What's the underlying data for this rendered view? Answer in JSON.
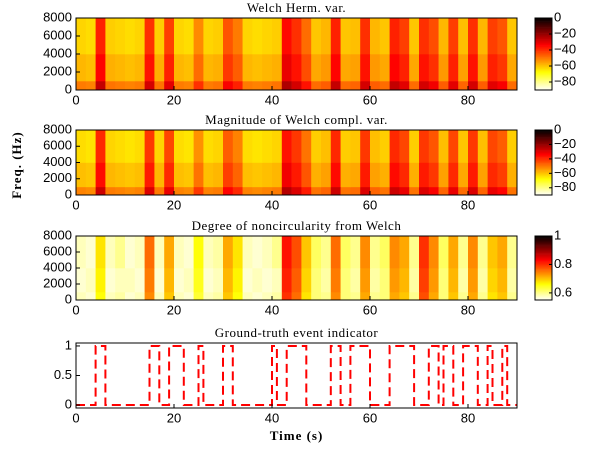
{
  "chart_data": [
    {
      "type": "heatmap",
      "title": "Welch Herm. var.",
      "colormap": "hot_r",
      "xbins": [
        0,
        2,
        4,
        6,
        8,
        10,
        12,
        14,
        16,
        18,
        20,
        22,
        24,
        26,
        28,
        30,
        32,
        34,
        36,
        38,
        40,
        42,
        44,
        46,
        48,
        50,
        52,
        54,
        56,
        58,
        60,
        62,
        64,
        66,
        68,
        70,
        72,
        74,
        76,
        78,
        80,
        82,
        84,
        86,
        88,
        90
      ],
      "ybins": [
        0,
        1000,
        4000,
        8000
      ],
      "z": [
        [
          -50,
          -51,
          -26,
          -49,
          -50,
          -51,
          -50,
          -28,
          -49,
          -30,
          -50,
          -51,
          -40,
          -50,
          -49,
          -33,
          -38,
          -50,
          -51,
          -50,
          -49,
          -23,
          -28,
          -36,
          -48,
          -46,
          -26,
          -48,
          -47,
          -28,
          -46,
          -48,
          -26,
          -30,
          -48,
          -28,
          -32,
          -46,
          -30,
          -47,
          -28,
          -46,
          -30,
          -33,
          -48
        ],
        [
          -58,
          -59,
          -34,
          -57,
          -58,
          -59,
          -58,
          -36,
          -57,
          -38,
          -58,
          -59,
          -48,
          -58,
          -57,
          -41,
          -46,
          -58,
          -59,
          -58,
          -57,
          -31,
          -36,
          -44,
          -56,
          -54,
          -34,
          -56,
          -55,
          -36,
          -54,
          -56,
          -34,
          -38,
          -56,
          -36,
          -40,
          -54,
          -38,
          -55,
          -36,
          -54,
          -38,
          -41,
          -56
        ],
        [
          -62,
          -63,
          -38,
          -61,
          -62,
          -63,
          -62,
          -40,
          -61,
          -42,
          -62,
          -63,
          -52,
          -62,
          -61,
          -45,
          -50,
          -62,
          -63,
          -62,
          -61,
          -35,
          -40,
          -48,
          -60,
          -58,
          -38,
          -60,
          -59,
          -40,
          -58,
          -60,
          -38,
          -42,
          -60,
          -40,
          -44,
          -58,
          -42,
          -59,
          -40,
          -58,
          -42,
          -45,
          -60
        ]
      ],
      "xlim": [
        0,
        90
      ],
      "ylim": [
        0,
        8000
      ],
      "xticks": [
        0,
        20,
        40,
        60,
        80
      ],
      "yticks": [
        0,
        2000,
        4000,
        6000,
        8000
      ],
      "clim": [
        -90,
        0
      ],
      "cticks": [
        0,
        {
          "value": -20,
          "label": "−20"
        },
        {
          "value": -40,
          "label": "−40"
        },
        {
          "value": -60,
          "label": "−60"
        },
        {
          "value": -80,
          "label": "−80"
        }
      ]
    },
    {
      "type": "heatmap",
      "title": "Magnitude of Welch compl. var.",
      "ylabel": "Freq. (Hz)",
      "colormap": "hot_r",
      "xbins": [
        0,
        2,
        4,
        6,
        8,
        10,
        12,
        14,
        16,
        18,
        20,
        22,
        24,
        26,
        28,
        30,
        32,
        34,
        36,
        38,
        40,
        42,
        44,
        46,
        48,
        50,
        52,
        54,
        56,
        58,
        60,
        62,
        64,
        66,
        68,
        70,
        72,
        74,
        76,
        78,
        80,
        82,
        84,
        86,
        88,
        90
      ],
      "ybins": [
        0,
        1000,
        4000,
        8000
      ],
      "z": [
        [
          -51,
          -52,
          -27,
          -50,
          -51,
          -52,
          -51,
          -29,
          -50,
          -31,
          -51,
          -52,
          -41,
          -51,
          -50,
          -34,
          -39,
          -51,
          -52,
          -51,
          -50,
          -24,
          -29,
          -37,
          -49,
          -47,
          -27,
          -49,
          -48,
          -29,
          -47,
          -49,
          -27,
          -31,
          -49,
          -29,
          -33,
          -47,
          -31,
          -48,
          -29,
          -47,
          -31,
          -34,
          -49
        ],
        [
          -59,
          -60,
          -35,
          -58,
          -59,
          -60,
          -59,
          -37,
          -58,
          -39,
          -59,
          -60,
          -49,
          -59,
          -58,
          -42,
          -47,
          -59,
          -60,
          -59,
          -58,
          -32,
          -37,
          -45,
          -57,
          -55,
          -35,
          -57,
          -56,
          -37,
          -55,
          -57,
          -35,
          -39,
          -57,
          -37,
          -41,
          -55,
          -39,
          -56,
          -37,
          -55,
          -39,
          -42,
          -57
        ],
        [
          -63,
          -64,
          -39,
          -62,
          -63,
          -64,
          -63,
          -41,
          -62,
          -43,
          -63,
          -64,
          -53,
          -63,
          -62,
          -46,
          -51,
          -63,
          -64,
          -63,
          -62,
          -36,
          -41,
          -49,
          -61,
          -59,
          -39,
          -61,
          -60,
          -41,
          -59,
          -61,
          -39,
          -43,
          -61,
          -41,
          -45,
          -59,
          -43,
          -60,
          -41,
          -59,
          -43,
          -46,
          -61
        ]
      ],
      "xlim": [
        0,
        90
      ],
      "ylim": [
        0,
        8000
      ],
      "xticks": [
        0,
        20,
        40,
        60,
        80
      ],
      "yticks": [
        0,
        2000,
        4000,
        6000,
        8000
      ],
      "clim": [
        -90,
        0
      ],
      "cticks": [
        0,
        {
          "value": -20,
          "label": "−20"
        },
        {
          "value": -40,
          "label": "−40"
        },
        {
          "value": -60,
          "label": "−60"
        },
        {
          "value": -80,
          "label": "−80"
        }
      ]
    },
    {
      "type": "heatmap",
      "title": "Degree of noncircularity from Welch",
      "colormap": "hot_r",
      "xbins": [
        0,
        2,
        4,
        6,
        8,
        10,
        12,
        14,
        16,
        18,
        20,
        22,
        24,
        26,
        28,
        30,
        32,
        34,
        36,
        38,
        40,
        42,
        44,
        46,
        48,
        50,
        52,
        54,
        56,
        58,
        60,
        62,
        64,
        66,
        68,
        70,
        72,
        74,
        76,
        78,
        80,
        82,
        84,
        86,
        88,
        90
      ],
      "ybins": [
        0,
        1000,
        4000,
        8000
      ],
      "z": [
        [
          0.58,
          0.57,
          0.66,
          0.58,
          0.59,
          0.57,
          0.58,
          0.74,
          0.58,
          0.7,
          0.58,
          0.57,
          0.64,
          0.58,
          0.59,
          0.7,
          0.66,
          0.58,
          0.57,
          0.58,
          0.59,
          0.8,
          0.76,
          0.68,
          0.61,
          0.6,
          0.74,
          0.61,
          0.6,
          0.72,
          0.6,
          0.61,
          0.72,
          0.7,
          0.6,
          0.78,
          0.72,
          0.61,
          0.7,
          0.6,
          0.72,
          0.6,
          0.68,
          0.7,
          0.6
        ],
        [
          0.57,
          0.58,
          0.67,
          0.57,
          0.58,
          0.58,
          0.57,
          0.75,
          0.57,
          0.71,
          0.57,
          0.58,
          0.65,
          0.57,
          0.58,
          0.71,
          0.67,
          0.57,
          0.58,
          0.57,
          0.58,
          0.81,
          0.77,
          0.69,
          0.61,
          0.59,
          0.75,
          0.61,
          0.59,
          0.73,
          0.59,
          0.61,
          0.73,
          0.71,
          0.59,
          0.79,
          0.73,
          0.61,
          0.71,
          0.59,
          0.73,
          0.59,
          0.69,
          0.71,
          0.59
        ],
        [
          0.58,
          0.57,
          0.68,
          0.58,
          0.6,
          0.57,
          0.58,
          0.76,
          0.58,
          0.72,
          0.58,
          0.57,
          0.66,
          0.58,
          0.59,
          0.72,
          0.68,
          0.58,
          0.57,
          0.58,
          0.6,
          0.82,
          0.78,
          0.7,
          0.62,
          0.6,
          0.76,
          0.62,
          0.6,
          0.74,
          0.6,
          0.62,
          0.74,
          0.72,
          0.6,
          0.8,
          0.74,
          0.62,
          0.72,
          0.6,
          0.74,
          0.6,
          0.7,
          0.72,
          0.6
        ]
      ],
      "xlim": [
        0,
        90
      ],
      "ylim": [
        0,
        8000
      ],
      "xticks": [
        0,
        20,
        40,
        60,
        80
      ],
      "yticks": [
        0,
        2000,
        4000,
        6000,
        8000
      ],
      "clim": [
        0.55,
        1
      ],
      "cticks": [
        1,
        0.8,
        0.6
      ]
    },
    {
      "type": "line",
      "title": "Ground-truth event indicator",
      "xlabel": "Time (s)",
      "x": [
        0,
        4,
        4,
        6,
        6,
        15,
        15,
        17,
        17,
        19,
        19,
        22,
        22,
        25,
        25,
        26,
        26,
        30,
        30,
        32,
        32,
        40,
        40,
        41,
        41,
        43,
        43,
        47,
        47,
        52,
        52,
        54,
        54,
        56,
        56,
        60,
        60,
        64,
        64,
        69,
        69,
        72,
        72,
        74,
        74,
        75,
        75,
        77,
        77,
        79,
        79,
        82,
        82,
        84,
        84,
        85,
        85,
        87,
        87,
        88,
        88,
        90
      ],
      "series": [
        {
          "color": "#ff0000",
          "dash": true,
          "values": [
            0,
            0,
            1,
            1,
            0,
            0,
            1,
            1,
            0,
            0,
            1,
            1,
            0,
            0,
            1,
            1,
            0,
            0,
            1,
            1,
            0,
            0,
            1,
            1,
            0,
            0,
            1,
            1,
            0,
            0,
            1,
            1,
            0,
            0,
            1,
            1,
            0,
            0,
            1,
            1,
            0,
            0,
            1,
            1,
            0,
            0,
            1,
            1,
            0,
            0,
            1,
            1,
            0,
            0,
            1,
            1,
            0,
            0,
            1,
            1,
            0,
            0
          ]
        }
      ],
      "xlim": [
        0,
        90
      ],
      "ylim": [
        -0.05,
        1.05
      ],
      "xticks": [
        0,
        20,
        40,
        60,
        80
      ],
      "yticks": [
        0,
        0.5,
        1
      ]
    }
  ]
}
